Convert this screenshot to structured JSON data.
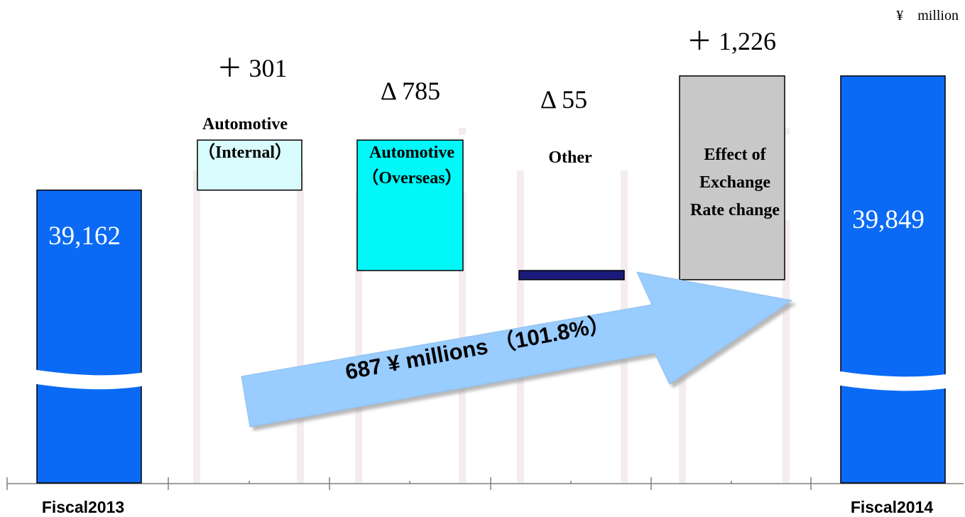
{
  "chart_data": {
    "type": "waterfall",
    "unit_label": "¥　million",
    "bars": [
      {
        "id": "fiscal2013",
        "label": "Fiscal2013",
        "kind": "total",
        "value": 39162,
        "value_label": "39,162",
        "color": "#0a6af5"
      },
      {
        "id": "auto-internal",
        "label_lines": [
          "Automotive",
          "（Internal）"
        ],
        "kind": "delta",
        "value": 301,
        "value_label": "＋ 301",
        "color": "#d8fbfd"
      },
      {
        "id": "auto-overseas",
        "label_lines": [
          "Automotive",
          "（Overseas）"
        ],
        "kind": "delta",
        "value": -785,
        "value_label": "Δ 785",
        "color": "#00f8f8"
      },
      {
        "id": "other",
        "label_lines": [
          "Other"
        ],
        "kind": "delta",
        "value": -55,
        "value_label": "Δ 55",
        "color": "#1a1a7a"
      },
      {
        "id": "exchange",
        "label_lines": [
          "Effect of",
          "Exchange",
          "Rate change"
        ],
        "kind": "delta",
        "value": 1226,
        "value_label": "＋ 1,226",
        "color": "#c8c8c8"
      },
      {
        "id": "fiscal2014",
        "label": "Fiscal2014",
        "kind": "total",
        "value": 39849,
        "value_label": "39,849",
        "color": "#0a6af5"
      }
    ],
    "axis_break": true,
    "annotation": {
      "text": "687 ¥ millions （101.8%）"
    }
  }
}
